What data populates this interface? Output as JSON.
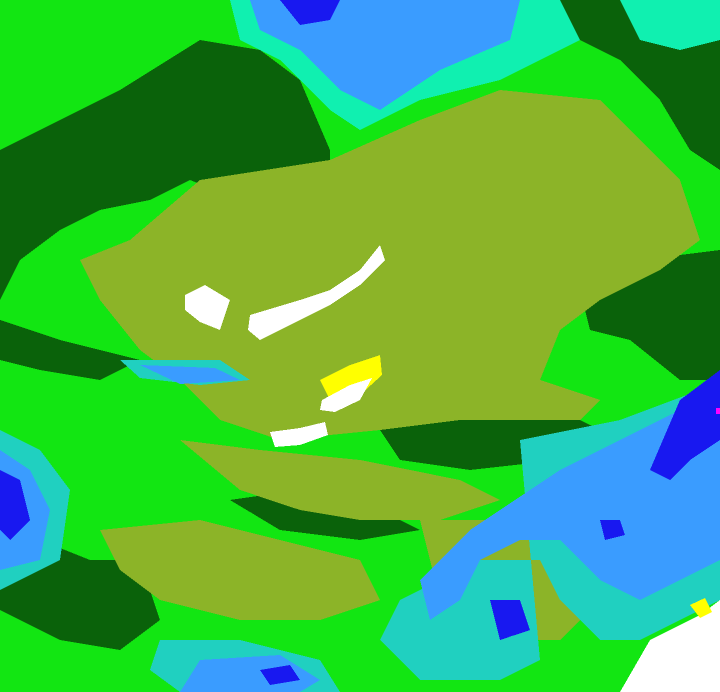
{
  "map": {
    "palette": {
      "bright_green": "#12e612",
      "dark_green": "#0a620a",
      "olive": "#8cb428",
      "cyan": "#10f0b0",
      "teal": "#20d0c0",
      "light_blue": "#3a9cff",
      "blue": "#1818f0",
      "white": "#ffffff",
      "yellow": "#ffff00",
      "magenta": "#ff00ff"
    }
  }
}
